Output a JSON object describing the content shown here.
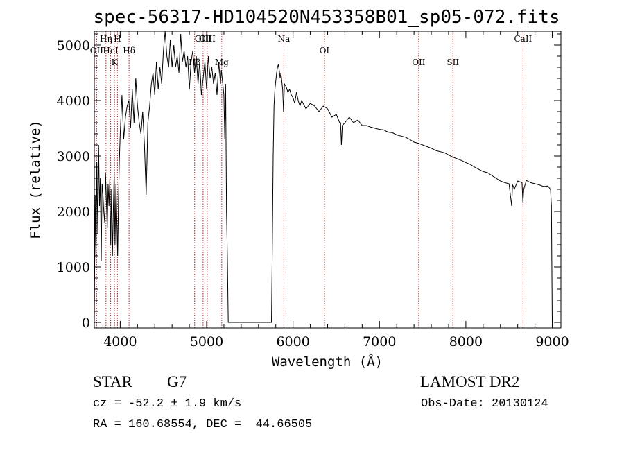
{
  "title": "spec-56317-HD104520N453358B01_sp05-072.fits",
  "info": {
    "object_class": "STAR",
    "subclass": "G7",
    "survey": "LAMOST DR2",
    "redshift": "cz = -52.2 ± 1.9 km/s",
    "obs_date": "Obs-Date: 20130124",
    "coords": "RA = 160.68554, DEC =  44.66505"
  },
  "colors": {
    "spectrum": "#000000",
    "line_marker": "#b22222",
    "axes": "#000000"
  },
  "chart_data": {
    "type": "line",
    "title": "spec-56317-HD104520N453358B01_sp05-072.fits",
    "xlabel": "Wavelength (Å)",
    "ylabel": "Flux (relative)",
    "xlim": [
      3700,
      9100
    ],
    "ylim": [
      -100,
      5250
    ],
    "xticks": [
      4000,
      5000,
      6000,
      7000,
      8000,
      9000
    ],
    "yticks": [
      0,
      1000,
      2000,
      3000,
      4000,
      5000
    ],
    "grid": false,
    "series": [
      {
        "x": [
          3700,
          3710,
          3720,
          3730,
          3740,
          3750,
          3760,
          3770,
          3780,
          3790,
          3800,
          3810,
          3820,
          3830,
          3840,
          3850,
          3860,
          3870,
          3880,
          3890,
          3900,
          3910,
          3920,
          3930,
          3940,
          3950,
          3960,
          3970,
          3980,
          3990,
          4000,
          4020,
          4040,
          4060,
          4080,
          4100,
          4120,
          4140,
          4160,
          4180,
          4200,
          4220,
          4240,
          4260,
          4280,
          4300,
          4310,
          4320,
          4340,
          4360,
          4380,
          4400,
          4420,
          4440,
          4460,
          4480,
          4500,
          4520,
          4540,
          4560,
          4580,
          4600,
          4620,
          4640,
          4660,
          4680,
          4700,
          4720,
          4740,
          4760,
          4780,
          4800,
          4820,
          4840,
          4860,
          4880,
          4900,
          4920,
          4940,
          4960,
          4980,
          5000,
          5020,
          5040,
          5060,
          5080,
          5100,
          5120,
          5140,
          5160,
          5170,
          5180,
          5200,
          5210,
          5220,
          5230,
          5240,
          5250,
          5750,
          5760,
          5770,
          5780,
          5790,
          5800,
          5810,
          5820,
          5830,
          5840,
          5850,
          5860,
          5870,
          5880,
          5890,
          5900,
          5920,
          5940,
          5960,
          5980,
          6000,
          6020,
          6040,
          6060,
          6080,
          6100,
          6150,
          6200,
          6250,
          6300,
          6350,
          6400,
          6450,
          6500,
          6540,
          6550,
          6560,
          6570,
          6600,
          6650,
          6700,
          6750,
          6800,
          6850,
          6900,
          6950,
          7000,
          7050,
          7100,
          7150,
          7200,
          7250,
          7300,
          7350,
          7400,
          7450,
          7500,
          7550,
          7600,
          7650,
          7700,
          7750,
          7800,
          7850,
          7900,
          7950,
          8000,
          8050,
          8100,
          8150,
          8200,
          8250,
          8300,
          8350,
          8400,
          8450,
          8500,
          8530,
          8540,
          8550,
          8560,
          8600,
          8650,
          8660,
          8670,
          8700,
          8750,
          8800,
          8850,
          8900,
          8950,
          8980,
          8990,
          9000
        ],
        "y": [
          0,
          2300,
          1100,
          2900,
          1600,
          3200,
          2100,
          2600,
          1100,
          2500,
          2300,
          2000,
          1800,
          2700,
          2200,
          1700,
          2500,
          2100,
          2600,
          1400,
          2400,
          1200,
          2000,
          2700,
          1400,
          2500,
          1900,
          1200,
          2200,
          2900,
          3400,
          4100,
          3300,
          3700,
          3900,
          4000,
          3500,
          4200,
          3600,
          4400,
          3900,
          3600,
          3400,
          3800,
          3200,
          2300,
          2900,
          3600,
          3900,
          4300,
          4500,
          4100,
          4700,
          4200,
          4600,
          4300,
          4900,
          5300,
          4800,
          4600,
          5100,
          4600,
          5000,
          4600,
          4800,
          4500,
          5200,
          4700,
          4900,
          4600,
          4800,
          4200,
          4700,
          4900,
          4500,
          4800,
          4300,
          4700,
          4100,
          4400,
          4700,
          4200,
          4800,
          4400,
          4600,
          4300,
          4500,
          4100,
          4700,
          4300,
          4550,
          4400,
          4100,
          3300,
          4300,
          2000,
          1200,
          0,
          0,
          1300,
          3000,
          3900,
          4200,
          4350,
          4500,
          4600,
          4650,
          4550,
          4400,
          4500,
          4350,
          4200,
          3800,
          4300,
          4250,
          4150,
          4200,
          4100,
          4050,
          3950,
          4150,
          4000,
          3900,
          4000,
          3850,
          3950,
          3900,
          3800,
          3900,
          3850,
          3700,
          3750,
          3600,
          3600,
          3200,
          3550,
          3600,
          3700,
          3600,
          3650,
          3550,
          3550,
          3520,
          3500,
          3480,
          3470,
          3430,
          3420,
          3380,
          3360,
          3340,
          3300,
          3250,
          3230,
          3200,
          3170,
          3140,
          3100,
          3080,
          3060,
          3020,
          2980,
          2950,
          2920,
          2880,
          2850,
          2800,
          2760,
          2720,
          2700,
          2650,
          2600,
          2550,
          2520,
          2500,
          2100,
          2480,
          2450,
          2400,
          2550,
          2520,
          2150,
          2400,
          2560,
          2520,
          2500,
          2480,
          2450,
          2460,
          2400,
          2100,
          0
        ]
      }
    ],
    "line_markers": [
      {
        "label": "OII",
        "x": 3727,
        "row": 1
      },
      {
        "label": "Hη",
        "x": 3835,
        "row": 0
      },
      {
        "label": "HeI",
        "x": 3889,
        "row": 1
      },
      {
        "label": "K",
        "x": 3934,
        "row": 2
      },
      {
        "label": "H",
        "x": 3968,
        "row": 0
      },
      {
        "label": "Hδ",
        "x": 4102,
        "row": 1
      },
      {
        "label": "Hβ",
        "x": 4861,
        "row": 2
      },
      {
        "label": "OIII",
        "x": 4959,
        "row": 0
      },
      {
        "label": "OIII",
        "x": 5007,
        "row": 0
      },
      {
        "label": "Mg",
        "x": 5175,
        "row": 2
      },
      {
        "label": "Na",
        "x": 5894,
        "row": 0
      },
      {
        "label": "OI",
        "x": 6363,
        "row": 1
      },
      {
        "label": "OII",
        "x": 7454,
        "row": 2
      },
      {
        "label": "SII",
        "x": 7850,
        "row": 2
      },
      {
        "label": "CaII",
        "x": 8662,
        "row": 0
      }
    ]
  }
}
